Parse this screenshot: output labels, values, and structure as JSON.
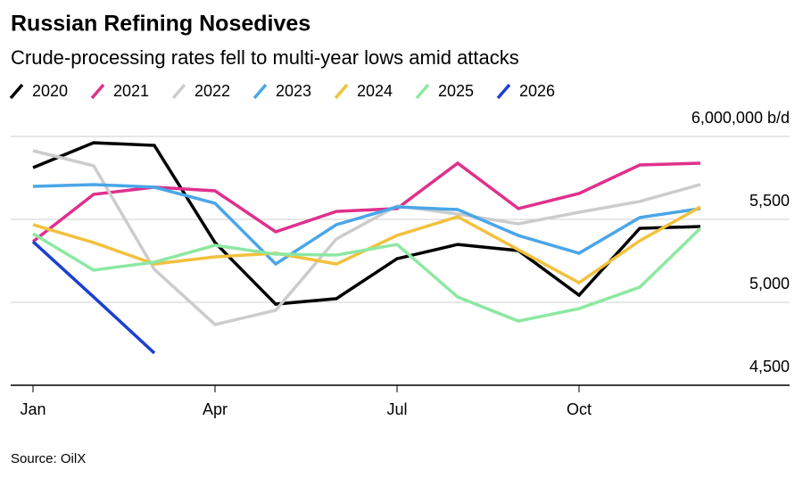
{
  "chart_data": {
    "type": "line",
    "title": "Russian Refining Nosedives",
    "subtitle": "Crude-processing rates fell to multi-year lows amid attacks",
    "source": "Source: OilX",
    "categories": [
      "Jan",
      null,
      null,
      "Apr",
      null,
      null,
      "Jul",
      null,
      null,
      "Oct",
      null,
      null
    ],
    "ylim": [
      4500000,
      6000000
    ],
    "yticks": [
      {
        "value": 4500000,
        "label": "4,500"
      },
      {
        "value": 5000000,
        "label": "5,000"
      },
      {
        "value": 5500000,
        "label": "5,500"
      },
      {
        "value": 6000000,
        "label": "6,000,000 b/d"
      }
    ],
    "grid": true,
    "series": [
      {
        "name": "2020",
        "color": "#000000",
        "values": [
          5812000,
          5962000,
          5946000,
          5360000,
          4989000,
          5022000,
          5263000,
          5349000,
          5312000,
          5043000,
          5446000,
          5457000
        ]
      },
      {
        "name": "2021",
        "color": "#e0308c",
        "values": [
          5366000,
          5651000,
          5694000,
          5672000,
          5425000,
          5548000,
          5565000,
          5839000,
          5565000,
          5656000,
          5828000,
          5839000
        ]
      },
      {
        "name": "2022",
        "color": "#cccccc",
        "values": [
          5914000,
          5823000,
          5199000,
          4866000,
          4952000,
          5382000,
          5581000,
          5532000,
          5473000,
          5543000,
          5608000,
          5710000
        ]
      },
      {
        "name": "2023",
        "color": "#4aa6e8",
        "values": [
          5699000,
          5710000,
          5694000,
          5597000,
          5231000,
          5468000,
          5575000,
          5559000,
          5403000,
          5296000,
          5511000,
          5565000
        ]
      },
      {
        "name": "2024",
        "color": "#f2c13d",
        "values": [
          5468000,
          5360000,
          5231000,
          5274000,
          5296000,
          5231000,
          5403000,
          5516000,
          5317000,
          5118000,
          5371000,
          5575000
        ]
      },
      {
        "name": "2025",
        "color": "#8de8a2",
        "values": [
          5414000,
          5194000,
          5242000,
          5344000,
          5290000,
          5285000,
          5349000,
          5032000,
          4887000,
          4962000,
          5091000,
          5446000
        ]
      },
      {
        "name": "2026",
        "color": "#1c3fd4",
        "values": [
          5366000,
          5032000,
          4694000,
          null,
          null,
          null,
          null,
          null,
          null,
          null,
          null,
          null
        ]
      }
    ]
  }
}
